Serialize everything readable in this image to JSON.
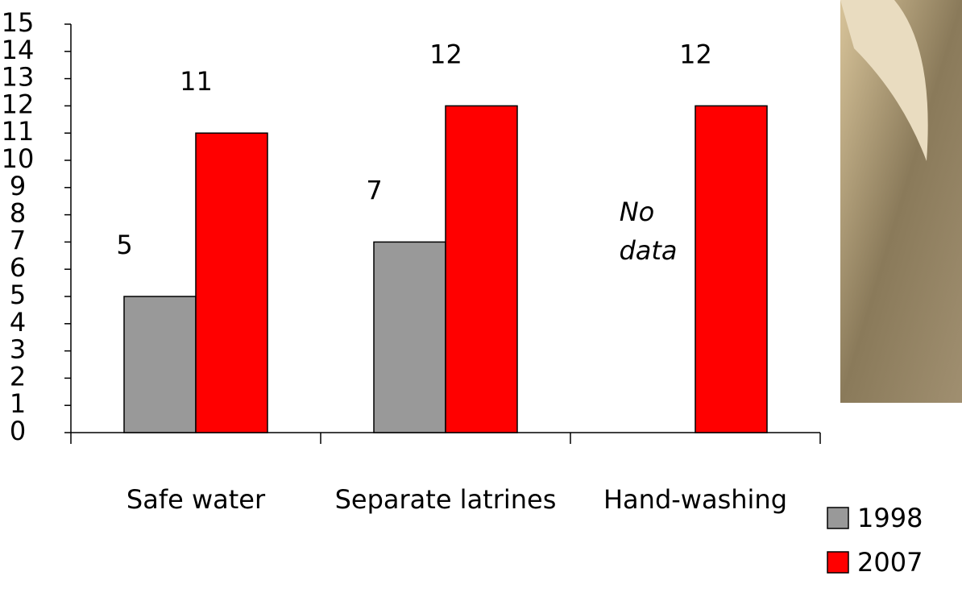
{
  "chart_data": {
    "type": "bar",
    "categories": [
      "Safe water",
      "Separate latrines",
      "Hand-washing"
    ],
    "series": [
      {
        "name": "1998",
        "color": "#999999",
        "values": [
          5,
          7,
          null
        ]
      },
      {
        "name": "2007",
        "color": "#ff0000",
        "values": [
          11,
          12,
          12
        ]
      }
    ],
    "annotation_lines": [
      "No",
      "data"
    ],
    "ylim": [
      0,
      15
    ],
    "yticks": [
      0,
      1,
      2,
      3,
      4,
      5,
      6,
      7,
      8,
      9,
      10,
      11,
      12,
      13,
      14,
      15
    ],
    "legend": "lower right"
  }
}
